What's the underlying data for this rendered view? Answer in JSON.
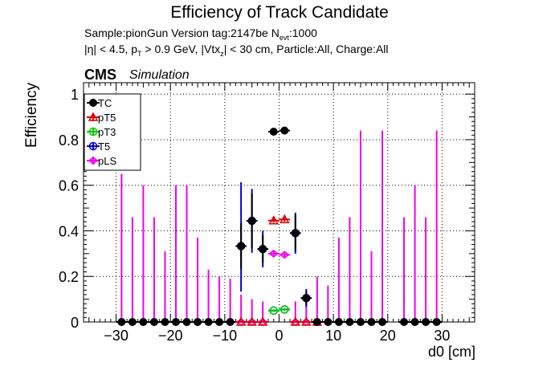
{
  "title": "Efficiency of Track Candidate",
  "subtitle_line1": {
    "prefix": "Sample:pionGun   Version tag:2147be  N",
    "sub": "evt",
    "suffix": ":1000"
  },
  "subtitle_line2": {
    "p1": "|η| < 4.5, p",
    "s1": "T",
    "p2": " > 0.9 GeV, |Vtx",
    "s2": "z",
    "p3": "| < 30 cm, Particle:All, Charge:All"
  },
  "cms_label": "CMS",
  "simulation_label": "Simulation",
  "colors": {
    "TC": "#000000",
    "pT5": "#dd0000",
    "pT3": "#00cc00",
    "T5": "#0000cc",
    "pLS": "#ee00ee"
  },
  "chart_data": {
    "type": "scatter",
    "xlabel": "d0 [cm]",
    "ylabel": "Efficiency",
    "xlim": [
      -36,
      36
    ],
    "ylim": [
      0,
      1.05
    ],
    "xticks": [
      -30,
      -20,
      -10,
      0,
      10,
      20,
      30
    ],
    "xtick_labels": [
      "−30",
      "−20",
      "−10",
      "0",
      "10",
      "20",
      "30"
    ],
    "yticks": [
      0,
      0.2,
      0.4,
      0.6,
      0.8,
      1
    ],
    "ytick_labels": [
      "0",
      "0.2",
      "0.4",
      "0.6",
      "0.8",
      "1"
    ],
    "grid": true,
    "legend_position": "top-left",
    "bin_half_width": 1,
    "series": [
      {
        "name": "TC",
        "marker": "filled-circle",
        "points": [
          {
            "x": -29,
            "y": 0
          },
          {
            "x": -27,
            "y": 0
          },
          {
            "x": -25,
            "y": 0
          },
          {
            "x": -23,
            "y": 0
          },
          {
            "x": -21,
            "y": 0
          },
          {
            "x": -19,
            "y": 0
          },
          {
            "x": -17,
            "y": 0
          },
          {
            "x": -15,
            "y": 0
          },
          {
            "x": -13,
            "y": 0
          },
          {
            "x": -11,
            "y": 0
          },
          {
            "x": -9,
            "y": 0
          },
          {
            "x": -7,
            "y": 0.333,
            "eyl": 0.1,
            "eyh": 0.1
          },
          {
            "x": -5,
            "y": 0.444,
            "eyl": 0.12,
            "eyh": 0.12
          },
          {
            "x": -3,
            "y": 0.32,
            "eyl": 0.06,
            "eyh": 0.06
          },
          {
            "x": -1,
            "y": 0.835,
            "eyl": 0.01,
            "eyh": 0.01
          },
          {
            "x": 1,
            "y": 0.84,
            "eyl": 0.01,
            "eyh": 0.01
          },
          {
            "x": 3,
            "y": 0.39,
            "eyl": 0.08,
            "eyh": 0.08
          },
          {
            "x": 5,
            "y": 0.105,
            "eyl": 0.03,
            "eyh": 0.03
          },
          {
            "x": 7,
            "y": 0
          },
          {
            "x": 9,
            "y": 0
          },
          {
            "x": 11,
            "y": 0
          },
          {
            "x": 13,
            "y": 0
          },
          {
            "x": 15,
            "y": 0
          },
          {
            "x": 17,
            "y": 0
          },
          {
            "x": 19,
            "y": 0
          },
          {
            "x": 23,
            "y": 0
          },
          {
            "x": 25,
            "y": 0
          },
          {
            "x": 27,
            "y": 0
          },
          {
            "x": 29,
            "y": 0
          }
        ]
      },
      {
        "name": "pT5",
        "marker": "open-triangle",
        "points": [
          {
            "x": -7,
            "y": 0
          },
          {
            "x": -5,
            "y": 0
          },
          {
            "x": -3,
            "y": 0
          },
          {
            "x": -1,
            "y": 0.445,
            "eyl": 0.01,
            "eyh": 0.01
          },
          {
            "x": 1,
            "y": 0.45,
            "eyl": 0.01,
            "eyh": 0.01
          },
          {
            "x": 3,
            "y": 0
          },
          {
            "x": 5,
            "y": 0
          },
          {
            "x": 7,
            "y": 0
          }
        ]
      },
      {
        "name": "pT3",
        "marker": "open-circle",
        "points": [
          {
            "x": -1,
            "y": 0.05
          },
          {
            "x": 1,
            "y": 0.055
          }
        ]
      },
      {
        "name": "T5",
        "marker": "open-circle",
        "points": [
          {
            "x": -7,
            "y": 0.333,
            "eyl": 0.2,
            "eyh": 0.28
          },
          {
            "x": -5,
            "y": 0.444,
            "eyl": 0.14,
            "eyh": 0.14
          },
          {
            "x": -3,
            "y": 0.32,
            "eyl": 0.08,
            "eyh": 0.08
          },
          {
            "x": -1,
            "y": 0.05,
            "eyl": 0.005,
            "eyh": 0.005
          },
          {
            "x": 1,
            "y": 0.055,
            "eyl": 0.005,
            "eyh": 0.005
          },
          {
            "x": 3,
            "y": 0.39,
            "eyl": 0.09,
            "eyh": 0.09
          },
          {
            "x": 5,
            "y": 0.105,
            "eyl": 0.04,
            "eyh": 0.04
          }
        ]
      },
      {
        "name": "pLS",
        "marker": "open-diamond",
        "points": [
          {
            "x": -29,
            "y": 0,
            "eyl": 0,
            "eyh": 0.65
          },
          {
            "x": -27,
            "y": 0,
            "eyl": 0,
            "eyh": 0.46
          },
          {
            "x": -25,
            "y": 0,
            "eyl": 0,
            "eyh": 0.6
          },
          {
            "x": -23,
            "y": 0,
            "eyl": 0,
            "eyh": 0.46
          },
          {
            "x": -21,
            "y": 0,
            "eyl": 0,
            "eyh": 0.31
          },
          {
            "x": -19,
            "y": 0,
            "eyl": 0,
            "eyh": 0.6
          },
          {
            "x": -17,
            "y": 0,
            "eyl": 0,
            "eyh": 0.6
          },
          {
            "x": -15,
            "y": 0,
            "eyl": 0,
            "eyh": 0.37
          },
          {
            "x": -13,
            "y": 0,
            "eyl": 0,
            "eyh": 0.23
          },
          {
            "x": -11,
            "y": 0,
            "eyl": 0,
            "eyh": 0.2
          },
          {
            "x": -9,
            "y": 0,
            "eyl": 0,
            "eyh": 0.19
          },
          {
            "x": -7,
            "y": 0,
            "eyl": 0,
            "eyh": 0.12
          },
          {
            "x": -5,
            "y": 0,
            "eyl": 0,
            "eyh": 0.1
          },
          {
            "x": -3,
            "y": 0,
            "eyl": 0,
            "eyh": 0.09
          },
          {
            "x": -1,
            "y": 0.3,
            "eyl": 0.015,
            "eyh": 0.015
          },
          {
            "x": 1,
            "y": 0.295,
            "eyl": 0.015,
            "eyh": 0.015
          },
          {
            "x": 3,
            "y": 0,
            "eyl": 0,
            "eyh": 0.09
          },
          {
            "x": 5,
            "y": 0,
            "eyl": 0,
            "eyh": 0.1
          },
          {
            "x": 7,
            "y": 0,
            "eyl": 0,
            "eyh": 0.2
          },
          {
            "x": 9,
            "y": 0,
            "eyl": 0,
            "eyh": 0.16
          },
          {
            "x": 11,
            "y": 0,
            "eyl": 0,
            "eyh": 0.37
          },
          {
            "x": 13,
            "y": 0,
            "eyl": 0,
            "eyh": 0.46
          },
          {
            "x": 15,
            "y": 0,
            "eyl": 0,
            "eyh": 0.84
          },
          {
            "x": 17,
            "y": 0,
            "eyl": 0,
            "eyh": 0.31
          },
          {
            "x": 19,
            "y": 0,
            "eyl": 0,
            "eyh": 0.84
          },
          {
            "x": 23,
            "y": 0,
            "eyl": 0,
            "eyh": 0.46
          },
          {
            "x": 25,
            "y": 0,
            "eyl": 0,
            "eyh": 0.6
          },
          {
            "x": 27,
            "y": 0,
            "eyl": 0,
            "eyh": 0.46
          },
          {
            "x": 29,
            "y": 0,
            "eyl": 0,
            "eyh": 0.84
          }
        ]
      }
    ]
  }
}
